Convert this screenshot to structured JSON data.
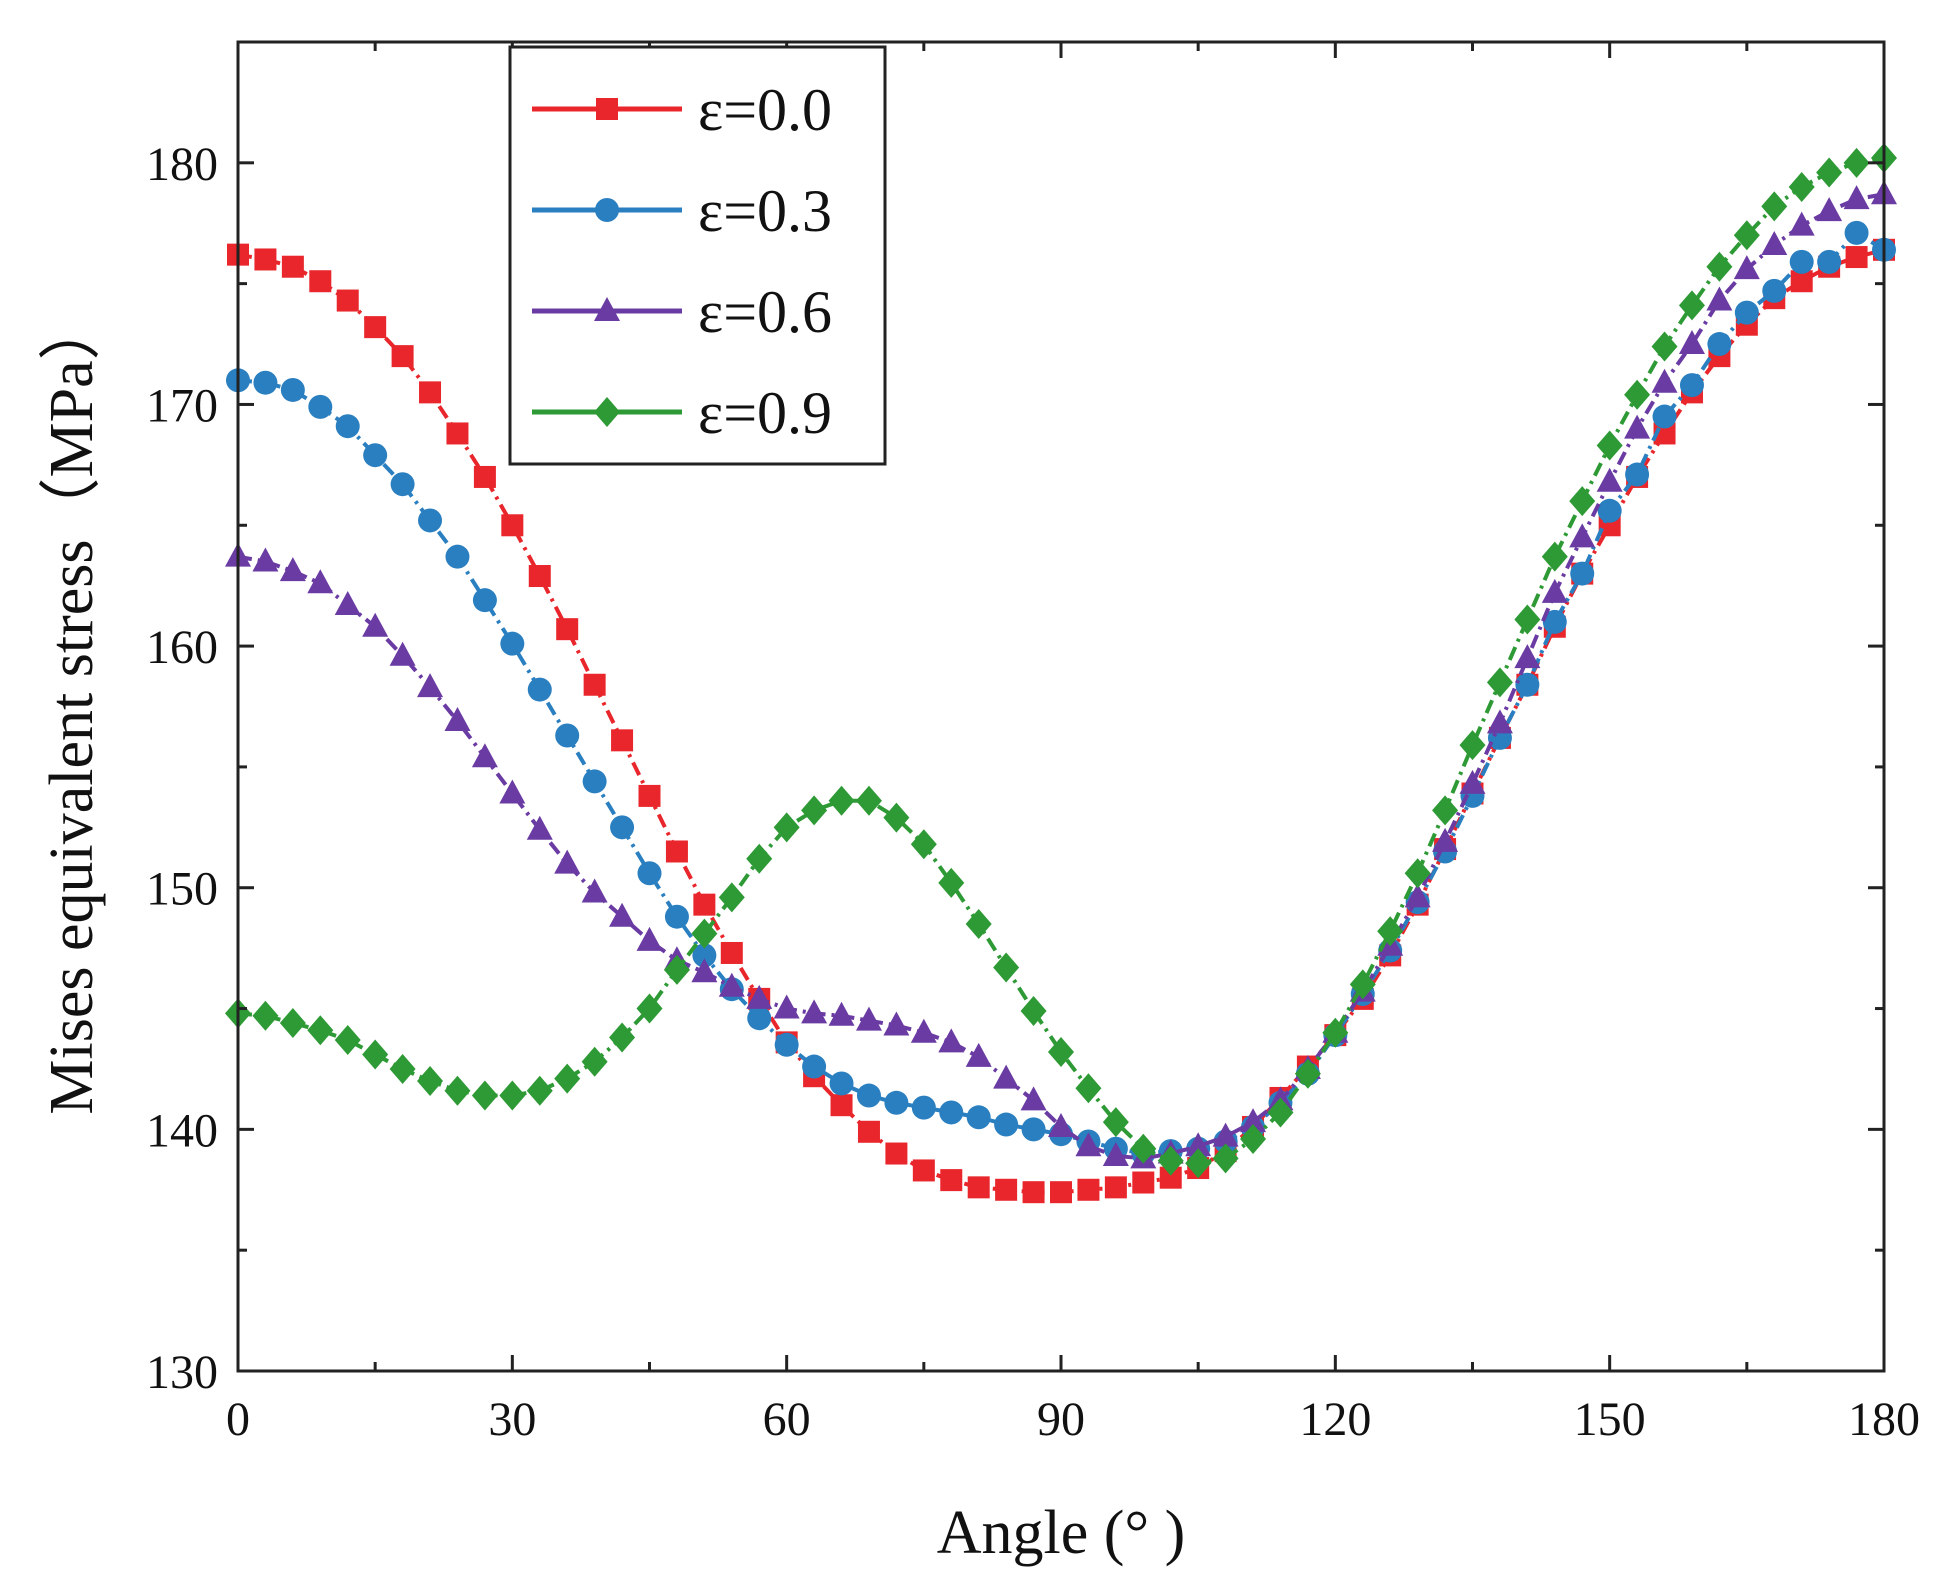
{
  "chart_data": {
    "type": "line",
    "title": "",
    "xlabel": "Angle (°  )",
    "ylabel": "Mises equivalent stress（MPa）",
    "xlim": [
      0,
      180
    ],
    "ylim": [
      130,
      185
    ],
    "xticks": [
      0,
      30,
      60,
      90,
      120,
      150,
      180
    ],
    "yticks": [
      130,
      140,
      150,
      160,
      170,
      180
    ],
    "xtick_labels": [
      "0",
      "30",
      "60",
      "90",
      "120",
      "150",
      "180"
    ],
    "ytick_labels": [
      "130",
      "140",
      "150",
      "160",
      "170",
      "180"
    ],
    "legend_position": "top-left",
    "grid": false,
    "x": [
      0,
      3,
      6,
      9,
      12,
      15,
      18,
      21,
      24,
      27,
      30,
      33,
      36,
      39,
      42,
      45,
      48,
      51,
      54,
      57,
      60,
      63,
      66,
      69,
      72,
      75,
      78,
      81,
      84,
      87,
      90,
      93,
      96,
      99,
      102,
      105,
      108,
      111,
      114,
      117,
      120,
      123,
      126,
      129,
      132,
      135,
      138,
      141,
      144,
      147,
      150,
      153,
      156,
      159,
      162,
      165,
      168,
      171,
      174,
      177,
      180
    ],
    "series": [
      {
        "name": "ε=0.0",
        "color": "#e8262b",
        "marker": "square",
        "values": [
          176.2,
          176.0,
          175.7,
          175.1,
          174.3,
          173.2,
          172.0,
          170.5,
          168.8,
          167.0,
          165.0,
          162.9,
          160.7,
          158.4,
          156.1,
          153.8,
          151.5,
          149.3,
          147.3,
          145.4,
          143.6,
          142.2,
          141.0,
          139.9,
          139.0,
          138.3,
          137.9,
          137.6,
          137.5,
          137.4,
          137.4,
          137.5,
          137.6,
          137.8,
          138.0,
          138.4,
          139.1,
          140.1,
          141.3,
          142.6,
          143.9,
          145.4,
          147.2,
          149.3,
          151.6,
          153.9,
          156.2,
          158.4,
          160.8,
          163.0,
          165.0,
          167.0,
          168.8,
          170.5,
          172.0,
          173.3,
          174.4,
          175.1,
          175.7,
          176.1,
          176.4
        ]
      },
      {
        "name": "ε=0.3",
        "color": "#2a7fc0",
        "marker": "circle",
        "values": [
          171.0,
          170.9,
          170.6,
          169.9,
          169.1,
          167.9,
          166.7,
          165.2,
          163.7,
          161.9,
          160.1,
          158.2,
          156.3,
          154.4,
          152.5,
          150.6,
          148.8,
          147.2,
          145.8,
          144.6,
          143.5,
          142.6,
          141.9,
          141.4,
          141.1,
          140.9,
          140.7,
          140.5,
          140.2,
          140.0,
          139.8,
          139.5,
          139.2,
          139.0,
          139.1,
          139.2,
          139.5,
          140.1,
          141.1,
          142.3,
          143.9,
          145.6,
          147.4,
          149.4,
          151.5,
          153.8,
          156.2,
          158.4,
          161.0,
          163.0,
          165.6,
          167.1,
          169.5,
          170.8,
          172.5,
          173.8,
          174.7,
          175.9,
          175.9,
          177.1,
          176.4
        ]
      },
      {
        "name": "ε=0.6",
        "color": "#6a3ba3",
        "marker": "triangle",
        "values": [
          163.7,
          163.5,
          163.1,
          162.6,
          161.7,
          160.8,
          159.6,
          158.3,
          156.9,
          155.4,
          153.9,
          152.4,
          151.0,
          149.8,
          148.8,
          147.8,
          147.0,
          146.5,
          145.9,
          145.4,
          145.0,
          144.8,
          144.7,
          144.5,
          144.3,
          144.0,
          143.6,
          143.0,
          142.1,
          141.2,
          140.1,
          139.3,
          138.9,
          138.8,
          139.0,
          139.3,
          139.7,
          140.3,
          141.2,
          142.5,
          144.0,
          145.7,
          147.6,
          149.6,
          151.9,
          154.3,
          156.8,
          159.5,
          162.2,
          164.5,
          166.8,
          169.0,
          170.9,
          172.5,
          174.3,
          175.6,
          176.6,
          177.4,
          178.0,
          178.5,
          178.7
        ]
      },
      {
        "name": "ε=0.9",
        "color": "#2e9a35",
        "marker": "diamond",
        "values": [
          144.8,
          144.7,
          144.4,
          144.1,
          143.7,
          143.1,
          142.5,
          142.0,
          141.6,
          141.4,
          141.4,
          141.6,
          142.1,
          142.8,
          143.8,
          145.0,
          146.6,
          148.1,
          149.6,
          151.2,
          152.5,
          153.2,
          153.6,
          153.6,
          152.9,
          151.8,
          150.2,
          148.5,
          146.7,
          144.9,
          143.2,
          141.7,
          140.3,
          139.2,
          138.7,
          138.6,
          138.8,
          139.6,
          140.7,
          142.3,
          144.0,
          146.0,
          148.2,
          150.6,
          153.2,
          155.9,
          158.5,
          161.1,
          163.7,
          166.0,
          168.3,
          170.4,
          172.4,
          174.1,
          175.7,
          177.0,
          178.2,
          179.0,
          179.6,
          180.0,
          180.2
        ]
      }
    ]
  }
}
